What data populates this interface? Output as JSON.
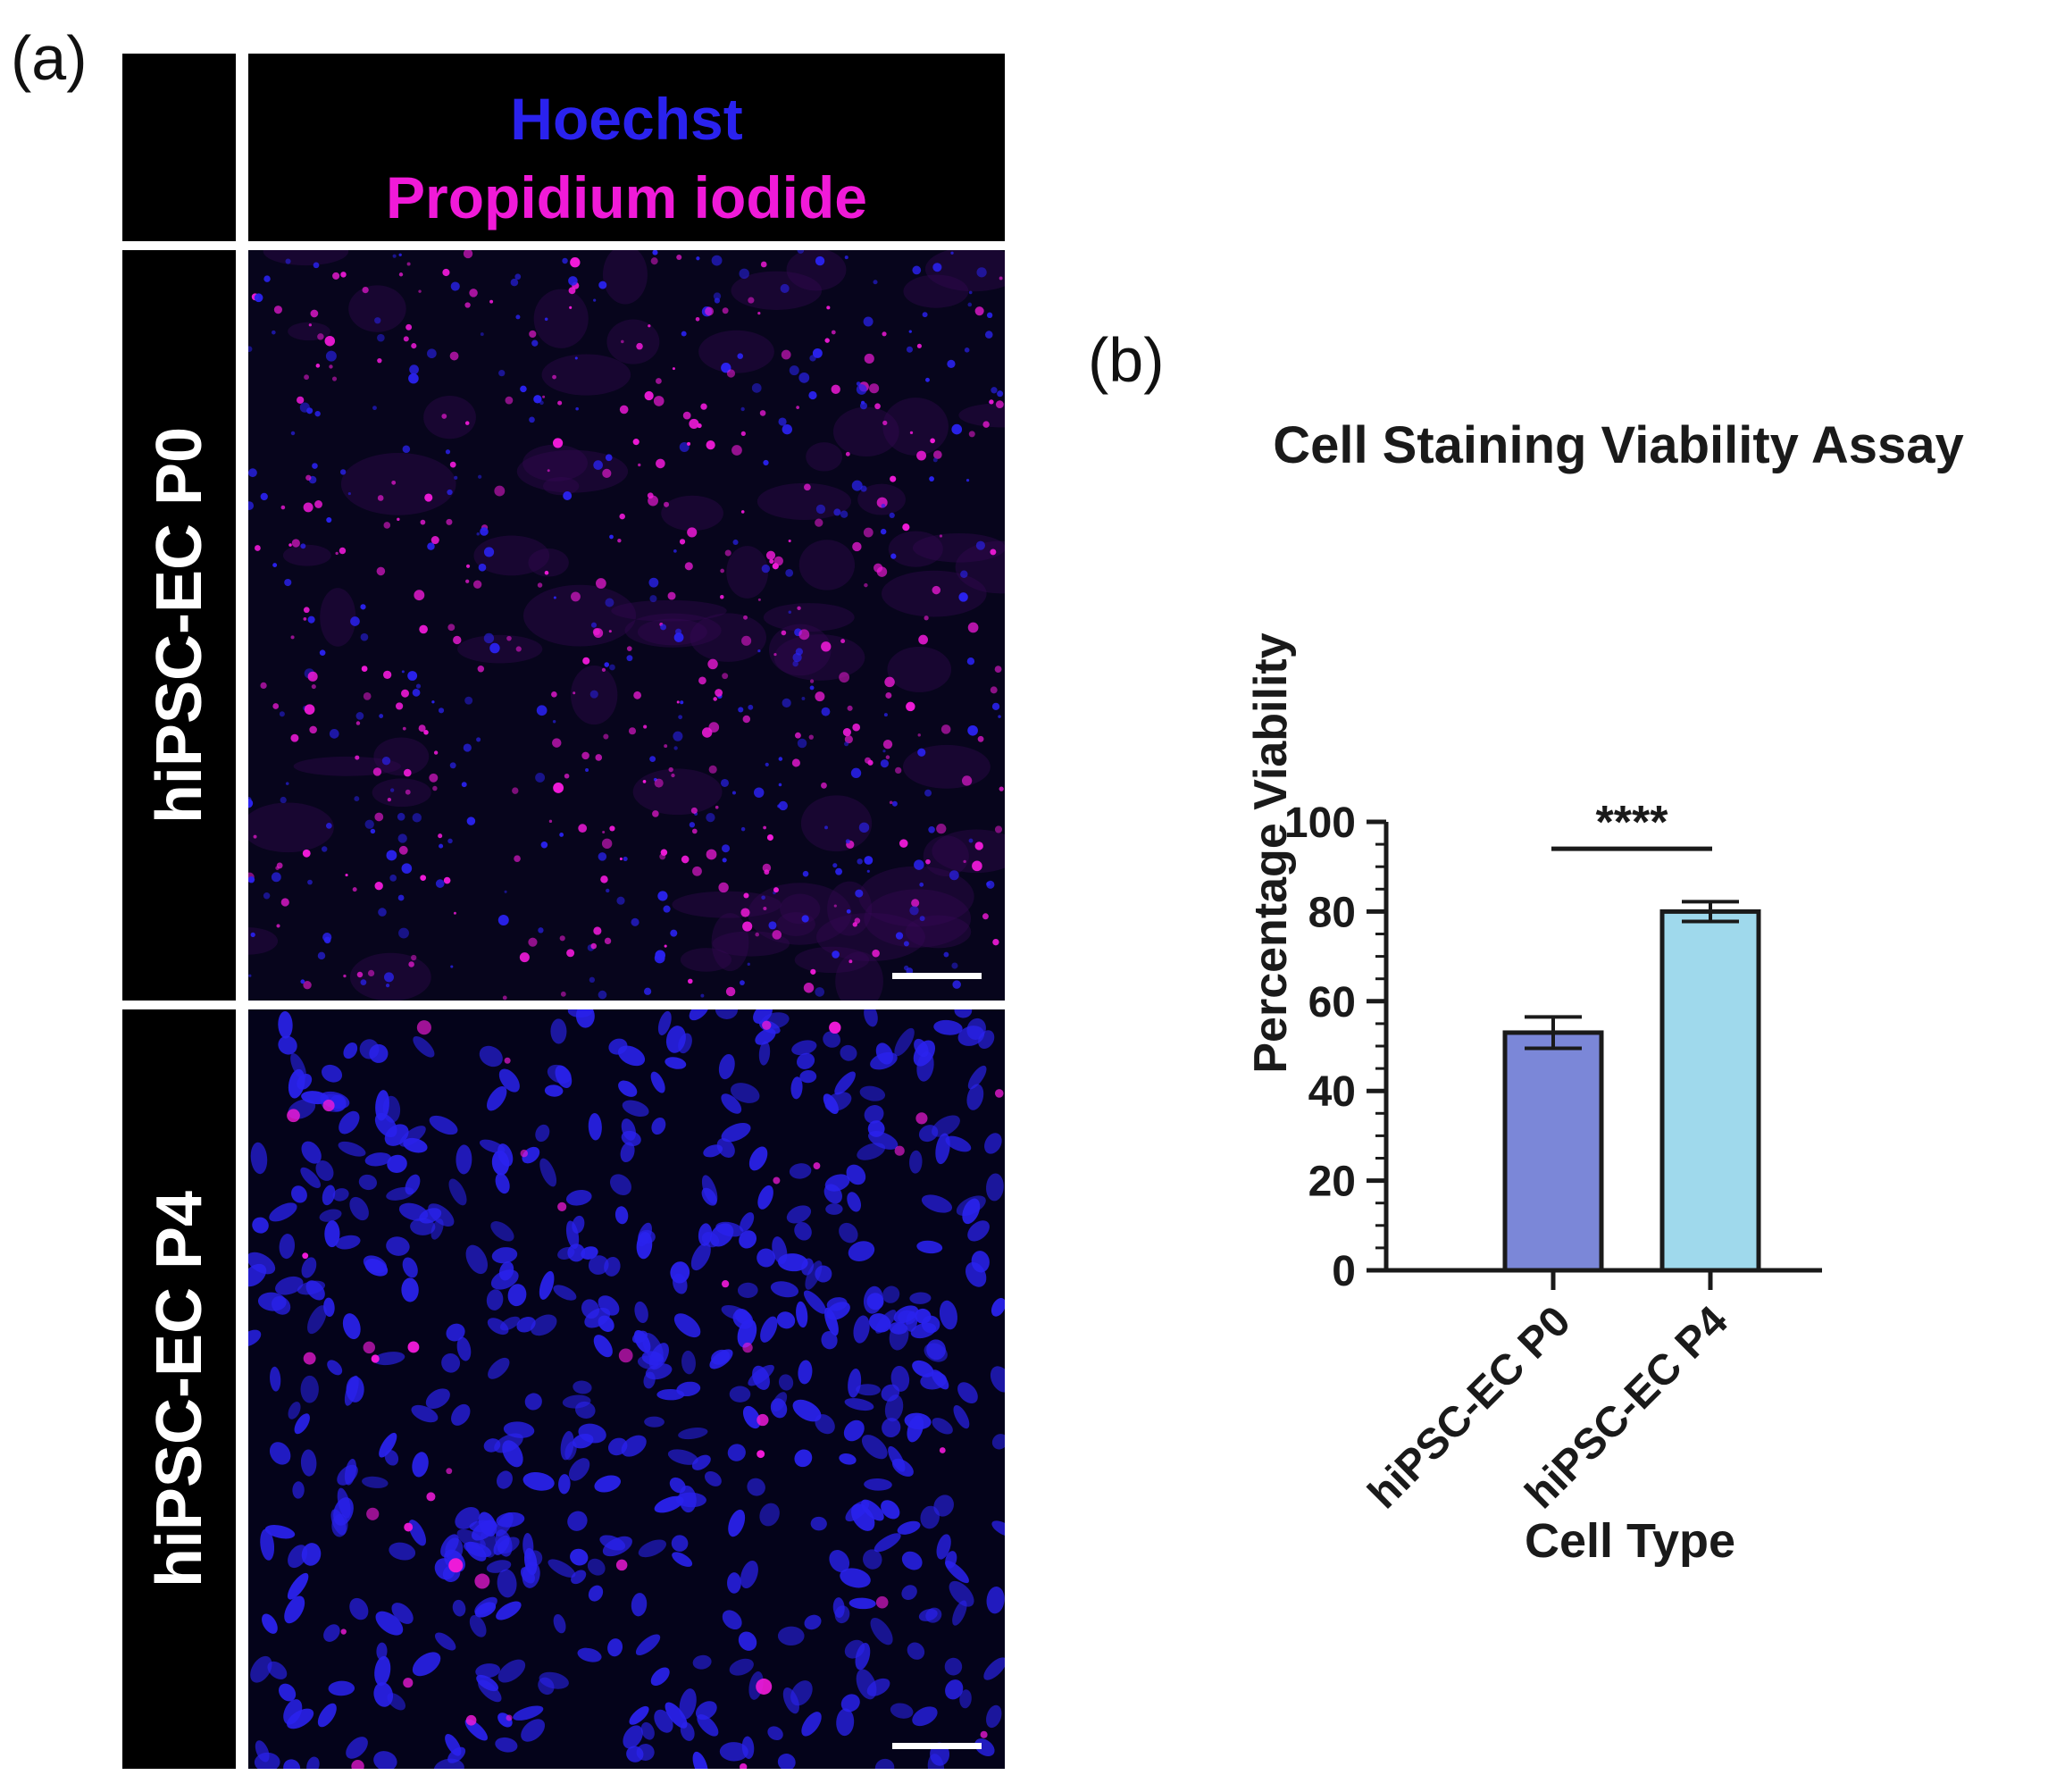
{
  "figure": {
    "panel_a_label": "(a)",
    "panel_b_label": "(b)",
    "stains": [
      "Hoechst",
      "Propidium iodide"
    ],
    "stain_colors": {
      "hoechst": "#2a22ee",
      "propidium_iodide": "#f01ad8"
    },
    "rows": [
      "hiPSC-EC P0",
      "hiPSC-EC P4"
    ]
  },
  "chart_data": {
    "type": "bar",
    "title": "Cell Staining Viability Assay",
    "xlabel": "Cell Type",
    "ylabel": "Percentage Viability",
    "categories": [
      "hiPSC-EC P0",
      "hiPSC-EC P4"
    ],
    "values": [
      53,
      80
    ],
    "errors": [
      3.5,
      2.2
    ],
    "bar_colors": [
      "#7b87d8",
      "#9fd9ec"
    ],
    "ylim": [
      0,
      100
    ],
    "yticks": [
      0,
      20,
      40,
      60,
      80,
      100
    ],
    "minor_tick_step": 5,
    "significance": {
      "between": [
        0,
        1
      ],
      "label": "****"
    },
    "grid": false,
    "legend": "none"
  }
}
